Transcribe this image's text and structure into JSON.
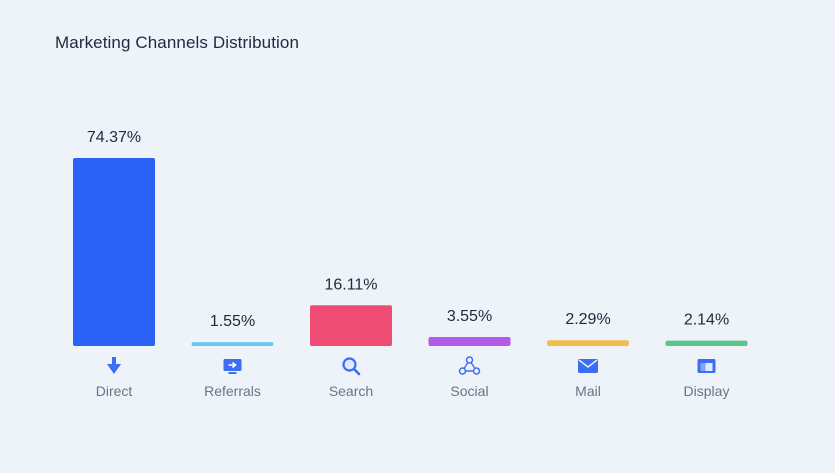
{
  "chart_data": {
    "type": "bar",
    "title": "Marketing Channels Distribution",
    "xlabel": "",
    "ylabel": "",
    "ylim": [
      0,
      74.37
    ],
    "grid": false,
    "categories": [
      "Direct",
      "Referrals",
      "Search",
      "Social",
      "Mail",
      "Display"
    ],
    "values": [
      74.37,
      1.55,
      16.11,
      3.55,
      2.29,
      2.14
    ],
    "value_labels": [
      "74.37%",
      "1.55%",
      "16.11%",
      "3.55%",
      "2.29%",
      "2.14%"
    ],
    "colors": [
      "#2962f5",
      "#6cc7f0",
      "#ee4c73",
      "#b25be6",
      "#f2bd4f",
      "#5cc58b"
    ],
    "icons": [
      "arrow-down-icon",
      "monitor-share-icon",
      "search-icon",
      "share-network-icon",
      "mail-icon",
      "display-window-icon"
    ]
  }
}
